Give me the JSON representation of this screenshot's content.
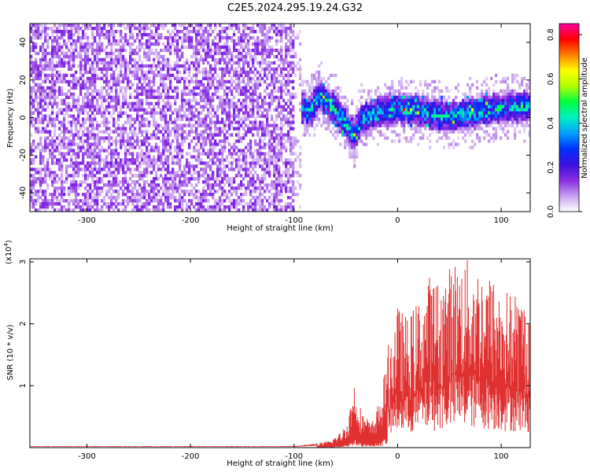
{
  "title": "C2E5.2024.295.19.24.G32",
  "chart_data": [
    {
      "type": "heatmap",
      "xlabel": "Height of straight line (km)",
      "ylabel": "Frequency (Hz)",
      "xlim": [
        -355,
        128
      ],
      "ylim": [
        -50,
        50
      ],
      "xticks": [
        -300,
        -200,
        -100,
        0,
        100
      ],
      "yticks": [
        -40,
        -20,
        0,
        20,
        40
      ],
      "noise_region_x": [
        -355,
        -100
      ],
      "signal_track": [
        {
          "x": -100,
          "y": 7
        },
        {
          "x": -85,
          "y": 3
        },
        {
          "x": -75,
          "y": 12
        },
        {
          "x": -60,
          "y": 4
        },
        {
          "x": -50,
          "y": -3
        },
        {
          "x": -42,
          "y": -10
        },
        {
          "x": -35,
          "y": -1
        },
        {
          "x": -20,
          "y": 2
        },
        {
          "x": 0,
          "y": 5
        },
        {
          "x": 25,
          "y": 3
        },
        {
          "x": 50,
          "y": 0
        },
        {
          "x": 75,
          "y": 3
        },
        {
          "x": 100,
          "y": 5
        },
        {
          "x": 125,
          "y": 6
        }
      ],
      "colorbar": {
        "label": "Normalized spectral amplitude",
        "range": [
          0.0,
          0.85
        ],
        "ticks": [
          0.0,
          0.2,
          0.4,
          0.6,
          0.8
        ],
        "tick_labels": [
          "0.0",
          "0.2",
          "0.4",
          "0.6",
          "0.8"
        ],
        "colors": [
          "#ffffff",
          "#c8a0f0",
          "#8a2be2",
          "#3a10e0",
          "#0030ff",
          "#00a0ff",
          "#00f0c0",
          "#00ff40",
          "#b0ff00",
          "#ffff00",
          "#ff8000",
          "#ff0000",
          "#ff00a0"
        ]
      }
    },
    {
      "type": "line",
      "xlabel": "Height of straight line (km)",
      "ylabel": "SNR (10 * v/v)",
      "y_multiplier": "(x10",
      "y_multiplier_exp": "4",
      "y_multiplier_close": ")",
      "xlim": [
        -355,
        128
      ],
      "ylim": [
        0,
        3.05
      ],
      "xticks": [
        -300,
        -200,
        -100,
        0,
        100
      ],
      "yticks": [
        1,
        2,
        3
      ],
      "envelope": [
        {
          "x": -355,
          "y": 0.02
        },
        {
          "x": -100,
          "y": 0.02
        },
        {
          "x": -80,
          "y": 0.05
        },
        {
          "x": -65,
          "y": 0.12
        },
        {
          "x": -55,
          "y": 0.25
        },
        {
          "x": -48,
          "y": 0.45
        },
        {
          "x": -42,
          "y": 1.1
        },
        {
          "x": -35,
          "y": 0.6
        },
        {
          "x": -25,
          "y": 0.4
        },
        {
          "x": -15,
          "y": 0.9
        },
        {
          "x": -10,
          "y": 1.6
        },
        {
          "x": 0,
          "y": 2.3
        },
        {
          "x": 10,
          "y": 2.1
        },
        {
          "x": 20,
          "y": 2.4
        },
        {
          "x": 30,
          "y": 2.8
        },
        {
          "x": 40,
          "y": 2.7
        },
        {
          "x": 55,
          "y": 3.05
        },
        {
          "x": 70,
          "y": 3.05
        },
        {
          "x": 85,
          "y": 2.9
        },
        {
          "x": 100,
          "y": 2.6
        },
        {
          "x": 115,
          "y": 2.5
        },
        {
          "x": 128,
          "y": 2.4
        }
      ],
      "color": "#e03030"
    }
  ]
}
